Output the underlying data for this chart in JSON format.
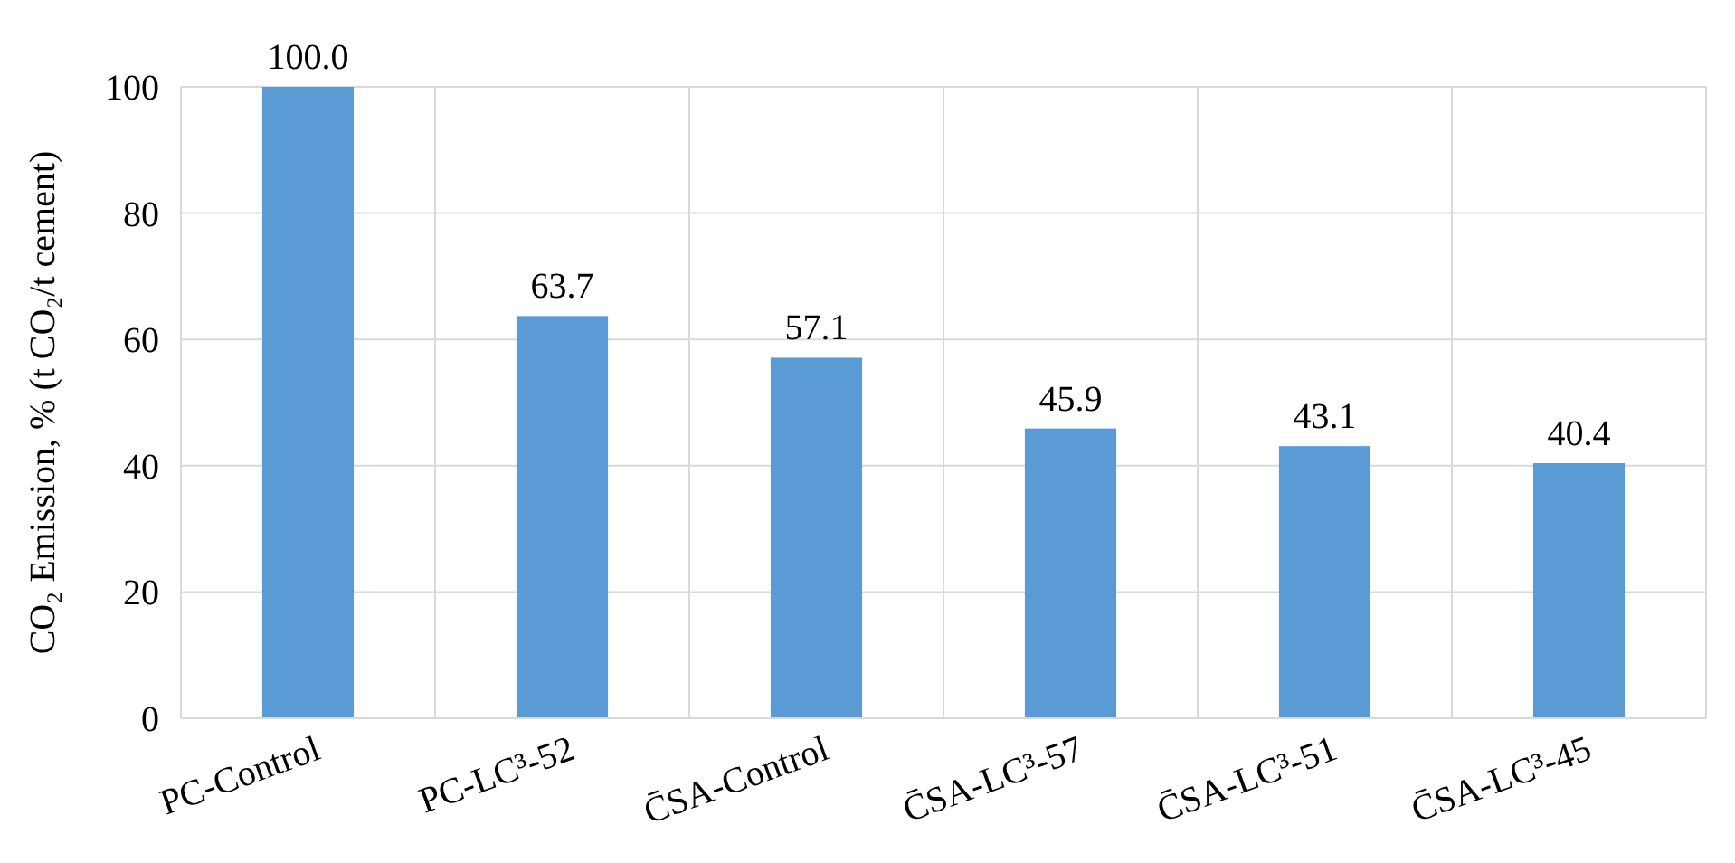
{
  "chart_data": {
    "type": "bar",
    "ylabel": "CO₂ Emission, % (t CO₂/t cement)",
    "categories": [
      "PC-Control",
      "PC-LC³-52",
      "C̄SA-Control",
      "C̄SA-LC³-57",
      "C̄SA-LC³-51",
      "C̄SA-LC³-45"
    ],
    "values": [
      100.0,
      63.7,
      57.1,
      45.9,
      43.1,
      40.4
    ],
    "value_labels": [
      "100.0",
      "63.7",
      "57.1",
      "45.9",
      "43.1",
      "40.4"
    ],
    "color": "#5b9bd5",
    "ylim": [
      0,
      100
    ],
    "yticks": [
      0,
      20,
      40,
      60,
      80,
      100
    ],
    "grid": true
  }
}
